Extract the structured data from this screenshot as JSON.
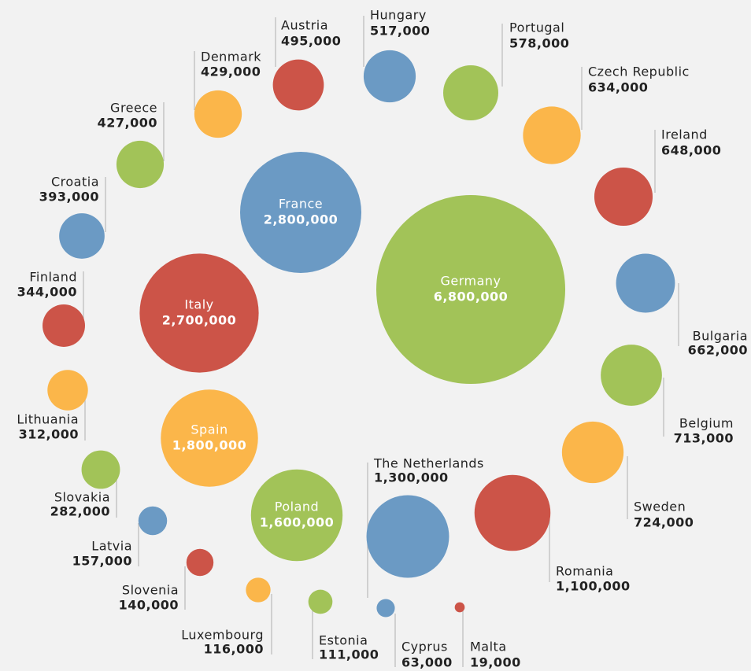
{
  "chart_data": {
    "type": "bubble",
    "categories": [
      "Germany",
      "France",
      "Italy",
      "Spain",
      "Poland",
      "The Netherlands",
      "Austria",
      "Hungary",
      "Portugal",
      "Czech Republic",
      "Ireland",
      "Bulgaria",
      "Belgium",
      "Sweden",
      "Romania",
      "Malta",
      "Cyprus",
      "Estonia",
      "Luxembourg",
      "Slovenia",
      "Latvia",
      "Slovakia",
      "Lithuania",
      "Finland",
      "Croatia",
      "Greece",
      "Denmark"
    ],
    "values": [
      6800000,
      2800000,
      2700000,
      1800000,
      1600000,
      1300000,
      495000,
      517000,
      578000,
      634000,
      648000,
      662000,
      713000,
      724000,
      1100000,
      19000,
      63000,
      111000,
      116000,
      140000,
      157000,
      282000,
      312000,
      344000,
      393000,
      427000,
      429000
    ],
    "value_labels": [
      "6,800,000",
      "2,800,000",
      "2,700,000",
      "1,800,000",
      "1,600,000",
      "1,300,000",
      "495,000",
      "517,000",
      "578,000",
      "634,000",
      "648,000",
      "662,000",
      "713,000",
      "724,000",
      "1,100,000",
      "19,000",
      "63,000",
      "111,000",
      "116,000",
      "140,000",
      "157,000",
      "282,000",
      "312,000",
      "344,000",
      "393,000",
      "427,000",
      "429,000"
    ],
    "colors": [
      "#a2c358",
      "#6b9ac4",
      "#cc5448",
      "#fbb64a",
      "#a2c358",
      "#6b9ac4",
      "#cc5448",
      "#6b9ac4",
      "#a2c358",
      "#fbb64a",
      "#cc5448",
      "#6b9ac4",
      "#a2c358",
      "#fbb64a",
      "#cc5448",
      "#cc5448",
      "#6b9ac4",
      "#a2c358",
      "#fbb64a",
      "#cc5448",
      "#6b9ac4",
      "#a2c358",
      "#fbb64a",
      "#cc5448",
      "#6b9ac4",
      "#a2c358",
      "#fbb64a"
    ]
  }
}
